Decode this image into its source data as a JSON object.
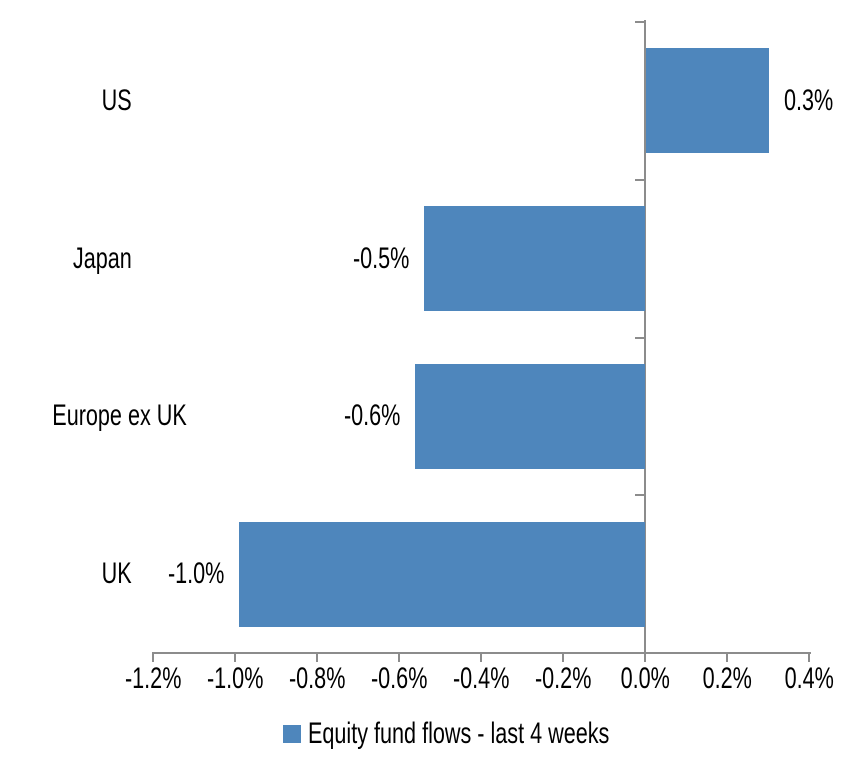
{
  "chart_data": {
    "type": "bar",
    "orientation": "horizontal",
    "title": "",
    "categories": [
      "US",
      "Japan",
      "Europe ex UK",
      "UK"
    ],
    "values": [
      0.3,
      -0.5,
      -0.6,
      -1.0
    ],
    "values_precise": [
      0.3,
      -0.54,
      -0.56,
      -0.99
    ],
    "value_labels": [
      "0.3%",
      "-0.5%",
      "-0.6%",
      "-1.0%"
    ],
    "unit": "%",
    "series": [
      {
        "name": "Equity fund flows - last 4 weeks",
        "values": [
          0.3,
          -0.5,
          -0.6,
          -1.0
        ]
      }
    ],
    "x_axis": {
      "min": -1.2,
      "max": 0.4,
      "step": 0.2,
      "tick_labels": [
        "-1.2%",
        "-1.0%",
        "-0.8%",
        "-0.6%",
        "-0.4%",
        "-0.2%",
        "0.0%",
        "0.2%",
        "0.4%"
      ]
    },
    "xlim": [
      -1.2,
      0.4
    ],
    "grid": false,
    "legend": {
      "position": "bottom",
      "entries": [
        "Equity fund flows - last 4 weeks"
      ]
    },
    "colors": {
      "bar": "#4E86BC",
      "axis": "#8C8C8C",
      "text": "#000000",
      "background": "#FFFFFF"
    }
  }
}
